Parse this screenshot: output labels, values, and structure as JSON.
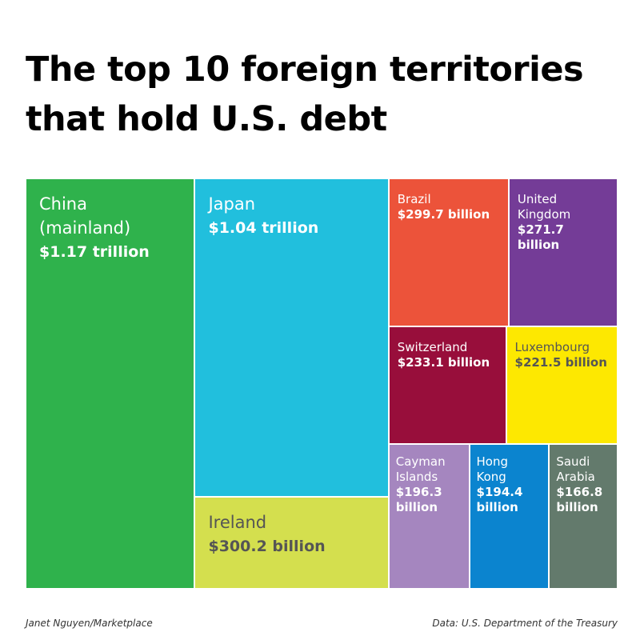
{
  "chart_data": {
    "type": "treemap",
    "title": "The top 10 foreign territories that hold U.S. debt",
    "categories": [
      "China (mainland)",
      "Japan",
      "Ireland",
      "Brazil",
      "United Kingdom",
      "Switzerland",
      "Luxembourg",
      "Cayman Islands",
      "Hong Kong",
      "Saudi Arabia"
    ],
    "values": [
      1170,
      1040,
      300.2,
      299.7,
      271.7,
      233.1,
      221.5,
      196.3,
      194.4,
      166.8
    ],
    "value_labels": [
      "$1.17 trillion",
      "$1.04 trillion",
      "$300.2 billion",
      "$299.7 billion",
      "$271.7 billion",
      "$233.1 billion",
      "$221.5 billion",
      "$196.3 billion",
      "$194.4 billion",
      "$166.8 billion"
    ],
    "colors": [
      "#2fb24c",
      "#21bfdd",
      "#d4df4e",
      "#ec533a",
      "#743c97",
      "#980e3b",
      "#fde801",
      "#a586bf",
      "#0b84cf",
      "#637a6c"
    ],
    "label_colors": [
      "#ffffff",
      "#ffffff",
      "#555555",
      "#ffffff",
      "#ffffff",
      "#ffffff",
      "#555555",
      "#ffffff",
      "#ffffff",
      "#ffffff"
    ],
    "credit": "Janet Nguyen/Marketplace",
    "source": "Data: U.S. Department of the Treasury"
  }
}
